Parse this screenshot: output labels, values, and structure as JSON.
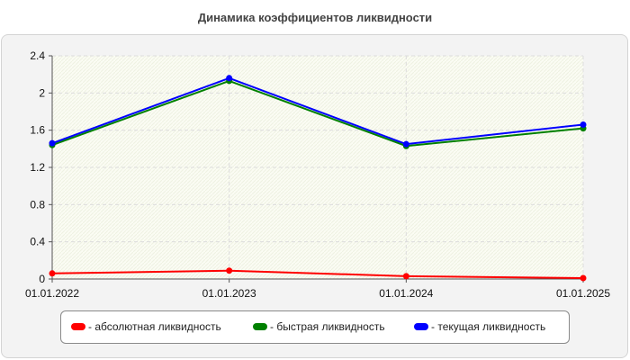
{
  "title": "Динамика коэффициентов ликвидности",
  "chart_data": {
    "type": "line",
    "x": [
      "01.01.2022",
      "01.01.2023",
      "01.01.2024",
      "01.01.2025"
    ],
    "ylim": [
      0,
      2.4
    ],
    "yticks": [
      "0",
      "0.4",
      "0.8",
      "1.2",
      "1.6",
      "2",
      "2.4"
    ],
    "grid": true,
    "legend_position": "bottom",
    "series": [
      {
        "name": "- абсолютная ликвидность",
        "color": "#ff0000",
        "values": [
          0.06,
          0.09,
          0.03,
          0.01
        ]
      },
      {
        "name": "- быстрая ликвидность",
        "color": "#008000",
        "values": [
          1.44,
          2.13,
          1.43,
          1.62
        ]
      },
      {
        "name": "- текущая ликвидность",
        "color": "#0000ff",
        "values": [
          1.46,
          2.16,
          1.45,
          1.66
        ]
      }
    ]
  }
}
